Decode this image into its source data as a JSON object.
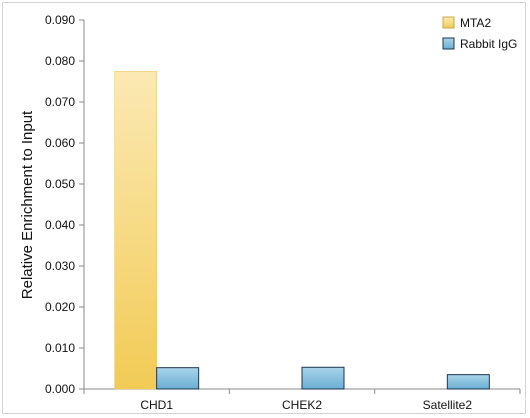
{
  "chart_data": {
    "type": "bar",
    "categories": [
      "CHD1",
      "CHEK2",
      "Satellite2"
    ],
    "series": [
      {
        "name": "MTA2",
        "values": [
          0.0775,
          0.0,
          0.0
        ]
      },
      {
        "name": "Rabbit IgG",
        "values": [
          0.0052,
          0.0053,
          0.0035
        ]
      }
    ],
    "ylabel": "Relative Enrichment to Input",
    "xlabel": "",
    "ylim": [
      0,
      0.09
    ],
    "yticks": [
      "0.000",
      "0.010",
      "0.020",
      "0.030",
      "0.040",
      "0.050",
      "0.060",
      "0.070",
      "0.080",
      "0.090"
    ],
    "legend_position": "top-right",
    "grid": false,
    "colors": {
      "MTA2_top": "#fbe9b4",
      "MTA2_bottom": "#f2cb55",
      "MTA2_stroke": "#e6c45d",
      "IgG_top": "#a9d4ea",
      "IgG_bottom": "#6aaed3",
      "IgG_stroke": "#1f3550"
    }
  }
}
